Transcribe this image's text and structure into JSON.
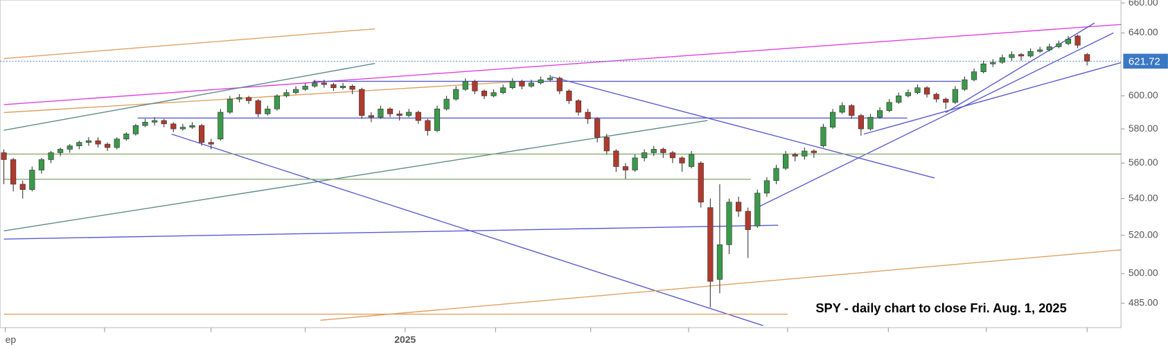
{
  "chart_data": {
    "type": "candlestick",
    "annotation": "SPY - daily chart to close Fri. Aug. 1, 2025",
    "scale": "log",
    "ylim": [
      473,
      662
    ],
    "yticks": [
      {
        "value": 660,
        "label": "660.00"
      },
      {
        "value": 640,
        "label": "640.00"
      },
      {
        "value": 600,
        "label": "600.00"
      },
      {
        "value": 580,
        "label": "580.00"
      },
      {
        "value": 560,
        "label": "560.00"
      },
      {
        "value": 540,
        "label": "540.00"
      },
      {
        "value": 520,
        "label": "520.00"
      },
      {
        "value": 500,
        "label": "500.00"
      },
      {
        "value": 485,
        "label": "485.00"
      }
    ],
    "xlim": [
      -0.4,
      118.6
    ],
    "xticks": [
      0.15,
      10.7,
      22,
      32,
      42.6,
      52.2,
      62.3,
      72.7,
      83.2,
      93.9,
      104.3,
      115
    ],
    "xtick_labels": [
      "ep",
      null,
      null,
      null,
      "2025",
      null,
      null,
      null,
      null,
      null,
      null,
      null
    ],
    "up_color": "#3a9a4a",
    "down_color": "#b03a2e",
    "last_price": 621.72,
    "last_price_color": "#3b78c4",
    "ohlc": [
      [
        566,
        568,
        548,
        562
      ],
      [
        562,
        563,
        544,
        548
      ],
      [
        548,
        550,
        540,
        545
      ],
      [
        545,
        558,
        544,
        556
      ],
      [
        556,
        563,
        554,
        562
      ],
      [
        562,
        567,
        560,
        566
      ],
      [
        566,
        569,
        564,
        568
      ],
      [
        568,
        571,
        566,
        570
      ],
      [
        570,
        573,
        568,
        572
      ],
      [
        572,
        575,
        570,
        573
      ],
      [
        573,
        575,
        569,
        571
      ],
      [
        571,
        572,
        567,
        569
      ],
      [
        569,
        575,
        568,
        574
      ],
      [
        574,
        578,
        573,
        577
      ],
      [
        577,
        583,
        576,
        582
      ],
      [
        582,
        586,
        581,
        584
      ],
      [
        584,
        587,
        582,
        585
      ],
      [
        585,
        586,
        581,
        583
      ],
      [
        583,
        584,
        578,
        580
      ],
      [
        580,
        583,
        579,
        581
      ],
      [
        581,
        584,
        580,
        582
      ],
      [
        582,
        583,
        570,
        572
      ],
      [
        572,
        574,
        568,
        571
      ],
      [
        574,
        592,
        573,
        590
      ],
      [
        590,
        600,
        589,
        598
      ],
      [
        598,
        601,
        596,
        599
      ],
      [
        599,
        600,
        595,
        597
      ],
      [
        597,
        598,
        587,
        589
      ],
      [
        589,
        594,
        588,
        592
      ],
      [
        592,
        601,
        591,
        600
      ],
      [
        600,
        604,
        599,
        602
      ],
      [
        602,
        606,
        601,
        604
      ],
      [
        604,
        608,
        603,
        606
      ],
      [
        606,
        610,
        605,
        608
      ],
      [
        608,
        610,
        605,
        607
      ],
      [
        607,
        608,
        603,
        605
      ],
      [
        605,
        608,
        604,
        606
      ],
      [
        606,
        607,
        601,
        604
      ],
      [
        604,
        605,
        586,
        588
      ],
      [
        588,
        590,
        584,
        587
      ],
      [
        587,
        594,
        586,
        592
      ],
      [
        592,
        593,
        587,
        589
      ],
      [
        589,
        591,
        585,
        588
      ],
      [
        588,
        592,
        587,
        590
      ],
      [
        590,
        591,
        583,
        585
      ],
      [
        585,
        586,
        576,
        579
      ],
      [
        579,
        594,
        578,
        592
      ],
      [
        592,
        600,
        591,
        598
      ],
      [
        598,
        606,
        597,
        604
      ],
      [
        604,
        611,
        603,
        609
      ],
      [
        609,
        610,
        601,
        603
      ],
      [
        603,
        604,
        598,
        600
      ],
      [
        600,
        604,
        599,
        602
      ],
      [
        602,
        607,
        601,
        605
      ],
      [
        605,
        611,
        604,
        609
      ],
      [
        609,
        610,
        604,
        606
      ],
      [
        606,
        610,
        605,
        608
      ],
      [
        608,
        612,
        607,
        610
      ],
      [
        610,
        613,
        609,
        611
      ],
      [
        611,
        612,
        601,
        603
      ],
      [
        603,
        604,
        595,
        597
      ],
      [
        597,
        598,
        588,
        590
      ],
      [
        590,
        592,
        583,
        586
      ],
      [
        586,
        587,
        572,
        575
      ],
      [
        575,
        577,
        565,
        567
      ],
      [
        567,
        568,
        555,
        558
      ],
      [
        558,
        560,
        551,
        556
      ],
      [
        556,
        565,
        555,
        563
      ],
      [
        563,
        568,
        561,
        566
      ],
      [
        566,
        570,
        564,
        568
      ],
      [
        568,
        569,
        563,
        566
      ],
      [
        566,
        567,
        560,
        563
      ],
      [
        563,
        564,
        555,
        560
      ],
      [
        558,
        567,
        557,
        565
      ],
      [
        560,
        561,
        535,
        538
      ],
      [
        535,
        540,
        483,
        496
      ],
      [
        497,
        548,
        490,
        515
      ],
      [
        515,
        540,
        510,
        538
      ],
      [
        538,
        541,
        530,
        533
      ],
      [
        533,
        535,
        508,
        523
      ],
      [
        525,
        545,
        524,
        543
      ],
      [
        543,
        552,
        541,
        550
      ],
      [
        550,
        559,
        548,
        557
      ],
      [
        557,
        567,
        556,
        565
      ],
      [
        565,
        566,
        561,
        564
      ],
      [
        564,
        569,
        562,
        567
      ],
      [
        567,
        568,
        563,
        566
      ],
      [
        570,
        583,
        569,
        581
      ],
      [
        581,
        592,
        580,
        590
      ],
      [
        590,
        596,
        589,
        594
      ],
      [
        594,
        595,
        586,
        588
      ],
      [
        588,
        589,
        576,
        580
      ],
      [
        580,
        589,
        579,
        587
      ],
      [
        587,
        593,
        586,
        591
      ],
      [
        591,
        598,
        590,
        596
      ],
      [
        596,
        602,
        595,
        600
      ],
      [
        600,
        604,
        599,
        602
      ],
      [
        602,
        607,
        601,
        605
      ],
      [
        605,
        606,
        599,
        601
      ],
      [
        601,
        602,
        596,
        598
      ],
      [
        598,
        599,
        592,
        596
      ],
      [
        596,
        606,
        595,
        604
      ],
      [
        604,
        612,
        603,
        610
      ],
      [
        610,
        617,
        609,
        615
      ],
      [
        615,
        622,
        614,
        620
      ],
      [
        620,
        623,
        618,
        621
      ],
      [
        621,
        626,
        620,
        624
      ],
      [
        624,
        628,
        622,
        626
      ],
      [
        626,
        627,
        622,
        625
      ],
      [
        625,
        630,
        624,
        628
      ],
      [
        628,
        631,
        627,
        629
      ],
      [
        629,
        633,
        628,
        631
      ],
      [
        631,
        635,
        630,
        633
      ],
      [
        633,
        638,
        632,
        636
      ],
      [
        638,
        639,
        630,
        632
      ],
      [
        626,
        627,
        619,
        621.72
      ]
    ],
    "lines": [
      {
        "x": [
          0,
          39.4
        ],
        "y": [
          623.4,
          642.7
        ],
        "color": "#e0a060"
      },
      {
        "x": [
          0,
          118.6
        ],
        "y": [
          594.6,
          645.6
        ],
        "color": "#e040e0"
      },
      {
        "x": [
          0,
          55
        ],
        "y": [
          589.8,
          609
        ],
        "color": "#e0a060"
      },
      {
        "x": [
          0,
          39.4
        ],
        "y": [
          579.2,
          620.3
        ],
        "color": "#5f8a8a"
      },
      {
        "x": [
          0,
          74.7
        ],
        "y": [
          522.4,
          585
        ],
        "color": "#5f8a8a"
      },
      {
        "x": [
          0,
          82.2
        ],
        "y": [
          518,
          525.4
        ],
        "color": "#5a5ad0"
      },
      {
        "x": [
          32.8,
          101.6
        ],
        "y": [
          609,
          609
        ],
        "color": "#5a5ad0"
      },
      {
        "x": [
          14.2,
          95.9
        ],
        "y": [
          586.5,
          586.5
        ],
        "color": "#5a5ad0"
      },
      {
        "x": [
          17.8,
          80.6
        ],
        "y": [
          576.9,
          474
        ],
        "color": "#5a5ad0"
      },
      {
        "x": [
          58.1,
          98.8
        ],
        "y": [
          611.9,
          551.5
        ],
        "color": "#5a5ad0"
      },
      {
        "x": [
          80.2,
          117.8
        ],
        "y": [
          535.6,
          640
        ],
        "color": "#5a5ad0"
      },
      {
        "x": [
          91.3,
          118.6
        ],
        "y": [
          576.9,
          620.8
        ],
        "color": "#5a5ad0"
      },
      {
        "x": [
          100,
          115.8
        ],
        "y": [
          589.8,
          646.6
        ],
        "color": "#5a5ad0"
      },
      {
        "x": [
          0,
          118.6
        ],
        "y": [
          565.2,
          565.2
        ],
        "color": "#8aaa70"
      },
      {
        "x": [
          0,
          79.3
        ],
        "y": [
          550.8,
          550.8
        ],
        "color": "#8aaa70"
      },
      {
        "x": [
          0,
          83.2
        ],
        "y": [
          479.6,
          479.6
        ],
        "color": "#e0a060"
      },
      {
        "x": [
          33.6,
          118.6
        ],
        "y": [
          476.6,
          512.3
        ],
        "color": "#e0a060"
      }
    ]
  }
}
